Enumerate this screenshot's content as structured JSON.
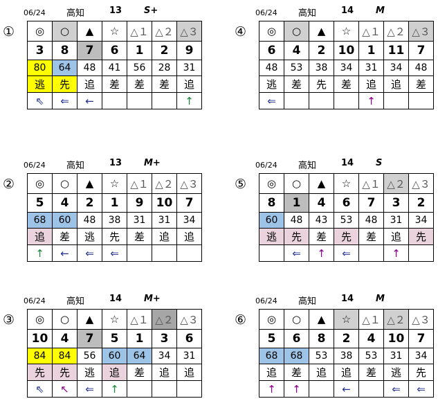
{
  "colors": {
    "yellow": "#ffff00",
    "blue": "#9dc3e6",
    "pink": "#ead3dc",
    "light_gray": "#d0d0d0",
    "dark_gray": "#a6a6a6",
    "num_gray": "#bdbdbd",
    "navy": "#1f2f8f",
    "green": "#1a8a3a",
    "purple": "#8b008b"
  },
  "headers": [
    "◎",
    "○",
    "▲",
    "☆",
    "△１",
    "△２",
    "△３"
  ],
  "panels": [
    {
      "index": "①",
      "date": "06/24",
      "venue": "高知",
      "race": "13",
      "grade": "S+",
      "header_bg": [
        null,
        "#d0d0d0",
        null,
        null,
        null,
        null,
        "#d0d0d0"
      ],
      "numbers": [
        "3",
        "8",
        "7",
        "6",
        "1",
        "2",
        "9"
      ],
      "number_bg": [
        null,
        null,
        "#bdbdbd",
        null,
        null,
        null,
        null
      ],
      "values": [
        "80",
        "64",
        "48",
        "41",
        "56",
        "28",
        "31"
      ],
      "value_bg": [
        "#ffff00",
        "#9dc3e6",
        null,
        null,
        null,
        null,
        null
      ],
      "types": [
        "逃",
        "先",
        "追",
        "差",
        "差",
        "差",
        "追"
      ],
      "type_bg": [
        "#ffff00",
        "#ffff00",
        null,
        null,
        null,
        null,
        null
      ],
      "arrows": [
        "⇖",
        "⇐",
        "←",
        "",
        "",
        "",
        "↑"
      ],
      "arrow_color": [
        "#1f2f8f",
        "#1f2f8f",
        "#1f2f8f",
        null,
        null,
        null,
        "#1a8a3a"
      ]
    },
    {
      "index": "②",
      "date": "06/24",
      "venue": "高知",
      "race": "13",
      "grade": "M+",
      "header_bg": [
        null,
        null,
        null,
        null,
        null,
        null,
        null
      ],
      "numbers": [
        "5",
        "4",
        "2",
        "1",
        "9",
        "10",
        "7"
      ],
      "number_bg": [
        null,
        null,
        null,
        null,
        null,
        null,
        null
      ],
      "values": [
        "68",
        "60",
        "48",
        "38",
        "31",
        "31",
        "34"
      ],
      "value_bg": [
        "#9dc3e6",
        "#9dc3e6",
        null,
        null,
        null,
        null,
        null
      ],
      "types": [
        "追",
        "差",
        "逃",
        "先",
        "差",
        "追",
        "追"
      ],
      "type_bg": [
        "#ead3dc",
        null,
        null,
        null,
        null,
        null,
        null
      ],
      "arrows": [
        "↑",
        "←",
        "⇐",
        "⇐",
        "",
        "",
        ""
      ],
      "arrow_color": [
        "#1a8a3a",
        "#1f2f8f",
        "#1f2f8f",
        "#1f2f8f",
        null,
        null,
        null
      ]
    },
    {
      "index": "③",
      "date": "06/24",
      "venue": "高知",
      "race": "14",
      "grade": "M+",
      "header_bg": [
        null,
        null,
        null,
        null,
        null,
        "#a6a6a6",
        null
      ],
      "numbers": [
        "10",
        "4",
        "7",
        "5",
        "1",
        "3",
        "6"
      ],
      "number_bg": [
        null,
        null,
        "#bdbdbd",
        null,
        null,
        null,
        null
      ],
      "values": [
        "84",
        "84",
        "56",
        "60",
        "64",
        "34",
        "31"
      ],
      "value_bg": [
        "#ffff00",
        "#ffff00",
        null,
        "#9dc3e6",
        "#9dc3e6",
        null,
        null
      ],
      "types": [
        "先",
        "先",
        "逃",
        "追",
        "差",
        "追",
        "追"
      ],
      "type_bg": [
        "#ead3dc",
        "#ead3dc",
        null,
        "#ead3dc",
        null,
        null,
        null
      ],
      "arrows": [
        "⇖",
        "↖",
        "⇐",
        "↑",
        "",
        "",
        ""
      ],
      "arrow_color": [
        "#1f2f8f",
        "#8b008b",
        "#1f2f8f",
        "#1a8a3a",
        null,
        null,
        null
      ]
    },
    {
      "index": "④",
      "date": "06/24",
      "venue": "高知",
      "race": "14",
      "grade": "M",
      "header_bg": [
        null,
        "#d0d0d0",
        null,
        null,
        null,
        null,
        "#d0d0d0"
      ],
      "numbers": [
        "6",
        "4",
        "2",
        "10",
        "1",
        "11",
        "7"
      ],
      "number_bg": [
        null,
        null,
        null,
        null,
        null,
        null,
        null
      ],
      "values": [
        "48",
        "53",
        "38",
        "34",
        "31",
        "34",
        "48"
      ],
      "value_bg": [
        null,
        null,
        null,
        null,
        null,
        null,
        null
      ],
      "types": [
        "逃",
        "差",
        "先",
        "差",
        "追",
        "追",
        "差"
      ],
      "type_bg": [
        null,
        null,
        null,
        null,
        null,
        null,
        null
      ],
      "arrows": [
        "⇐",
        "",
        "",
        "",
        "↑",
        "",
        ""
      ],
      "arrow_color": [
        "#1f2f8f",
        null,
        null,
        null,
        "#8b008b",
        null,
        null
      ]
    },
    {
      "index": "⑤",
      "date": "06/24",
      "venue": "高知",
      "race": "14",
      "grade": "S",
      "header_bg": [
        null,
        null,
        null,
        null,
        null,
        "#d0d0d0",
        null
      ],
      "numbers": [
        "8",
        "1",
        "4",
        "6",
        "7",
        "3",
        "2"
      ],
      "number_bg": [
        null,
        "#bdbdbd",
        null,
        null,
        null,
        null,
        null
      ],
      "values": [
        "60",
        "48",
        "43",
        "53",
        "48",
        "31",
        "34"
      ],
      "value_bg": [
        "#9dc3e6",
        null,
        null,
        null,
        null,
        null,
        null
      ],
      "types": [
        "逃",
        "先",
        "差",
        "先",
        "差",
        "追",
        "先"
      ],
      "type_bg": [
        "#ead3dc",
        "#ead3dc",
        null,
        "#ead3dc",
        null,
        null,
        "#ead3dc"
      ],
      "arrows": [
        "",
        "⇐",
        "↑",
        "⇐",
        "",
        "↑",
        ""
      ],
      "arrow_color": [
        null,
        "#1f2f8f",
        "#8b008b",
        "#1f2f8f",
        null,
        "#8b008b",
        null
      ]
    },
    {
      "index": "⑥",
      "date": "06/24",
      "venue": "高知",
      "race": "14",
      "grade": "M",
      "header_bg": [
        null,
        null,
        null,
        "#d0d0d0",
        null,
        "#d0d0d0",
        null
      ],
      "numbers": [
        "5",
        "6",
        "8",
        "2",
        "4",
        "10",
        "7"
      ],
      "number_bg": [
        null,
        null,
        null,
        null,
        null,
        null,
        null
      ],
      "values": [
        "68",
        "68",
        "53",
        "38",
        "53",
        "31",
        "34"
      ],
      "value_bg": [
        "#9dc3e6",
        "#9dc3e6",
        null,
        null,
        null,
        null,
        null
      ],
      "types": [
        "追",
        "差",
        "追",
        "追",
        "差",
        "逃",
        "先"
      ],
      "type_bg": [
        null,
        null,
        null,
        null,
        null,
        null,
        null
      ],
      "arrows": [
        "↑",
        "↑",
        "",
        "←",
        "",
        "⇐",
        "⇐"
      ],
      "arrow_color": [
        "#8b008b",
        "#8b008b",
        null,
        "#1f2f8f",
        null,
        "#1f2f8f",
        "#1f2f8f"
      ]
    }
  ]
}
